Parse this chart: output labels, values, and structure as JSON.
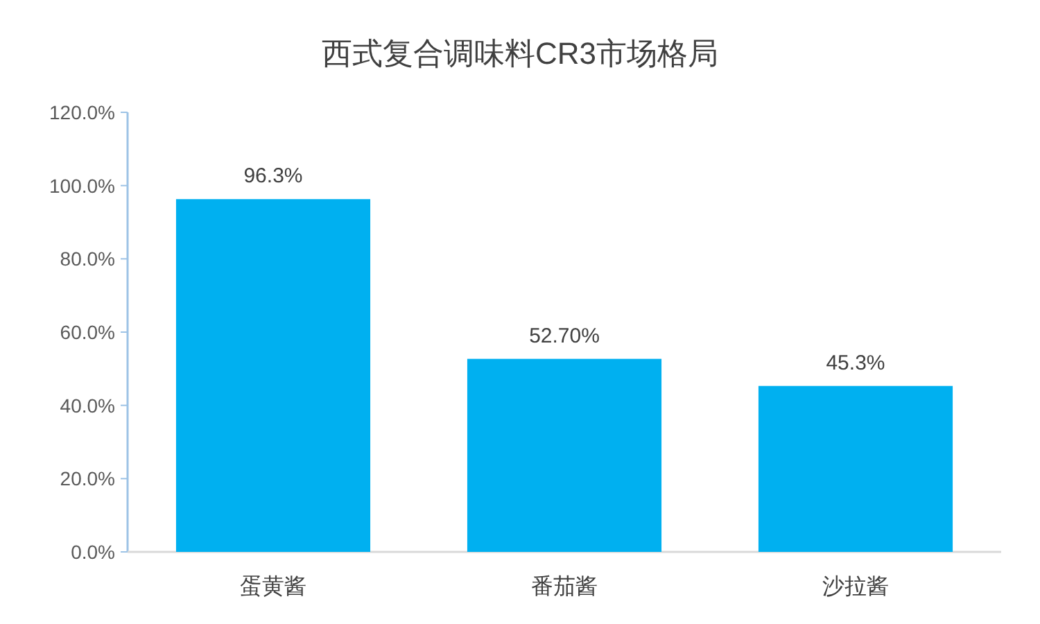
{
  "chart_data": {
    "type": "bar",
    "title": "西式复合调味料CR3市场格局",
    "categories": [
      "蛋黄酱",
      "番茄酱",
      "沙拉酱"
    ],
    "values": [
      96.3,
      52.7,
      45.3
    ],
    "value_labels": [
      "96.3%",
      "52.70%",
      "45.3%"
    ],
    "color": "#00b0f0",
    "ylim": [
      0,
      120
    ],
    "yticks": [
      {
        "value": 0,
        "label": "0.0%"
      },
      {
        "value": 20,
        "label": "20.0%"
      },
      {
        "value": 40,
        "label": "40.0%"
      },
      {
        "value": 60,
        "label": "60.0%"
      },
      {
        "value": 80,
        "label": "80.0%"
      },
      {
        "value": 100,
        "label": "100.0%"
      },
      {
        "value": 120,
        "label": "120.0%"
      }
    ],
    "grid": false
  }
}
